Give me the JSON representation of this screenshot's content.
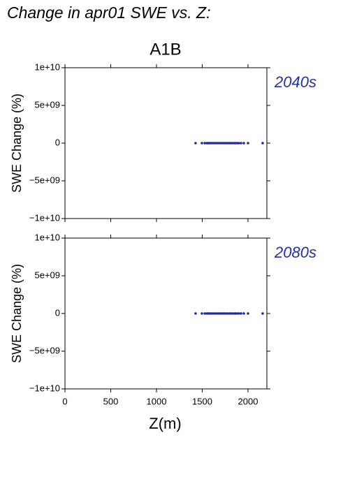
{
  "header": {
    "title": "Change in apr01 SWE vs. Z:",
    "subtitle": "A1B"
  },
  "chart_data": [
    {
      "type": "scatter",
      "label": "2040s",
      "ylabel": "SWE Change (%)",
      "color": "#1c2a9c",
      "label_color": "#2330a8",
      "xlim": [
        0,
        2206
      ],
      "xticks": [
        0,
        500,
        1000,
        1500,
        2000
      ],
      "ylim": [
        -10000000000,
        10000000000
      ],
      "yticks": [
        {
          "value": -10000000000,
          "label": "−1e+10"
        },
        {
          "value": -5000000000,
          "label": "−5e+09"
        },
        0,
        {
          "value": 5000000000,
          "label": "5e+09"
        },
        {
          "value": 10000000000,
          "label": "1e+10"
        }
      ],
      "x": [
        1427,
        1496,
        1527,
        1550,
        1565,
        1580,
        1600,
        1620,
        1640,
        1660,
        1680,
        1700,
        1720,
        1740,
        1760,
        1780,
        1800,
        1820,
        1840,
        1860,
        1880,
        1900,
        1924,
        1954,
        2000,
        2160
      ],
      "values": [
        0,
        0,
        0,
        0,
        0,
        0,
        0,
        0,
        0,
        0,
        0,
        0,
        0,
        0,
        0,
        0,
        0,
        0,
        0,
        0,
        0,
        0,
        0,
        0,
        0,
        0
      ]
    },
    {
      "type": "scatter",
      "label": "2080s",
      "ylabel": "SWE Change (%)",
      "xlabel": "Z(m)",
      "color": "#1c2a9c",
      "label_color": "#2330a8",
      "xlim": [
        0,
        2206
      ],
      "xticks": [
        0,
        500,
        1000,
        1500,
        2000
      ],
      "ylim": [
        -10000000000,
        10000000000
      ],
      "yticks": [
        {
          "value": -10000000000,
          "label": "−1e+10"
        },
        {
          "value": -5000000000,
          "label": "−5e+09"
        },
        0,
        {
          "value": 5000000000,
          "label": "5e+09"
        },
        {
          "value": 10000000000,
          "label": "1e+10"
        }
      ],
      "x": [
        1427,
        1496,
        1527,
        1550,
        1565,
        1580,
        1600,
        1620,
        1640,
        1660,
        1680,
        1700,
        1720,
        1740,
        1760,
        1780,
        1800,
        1820,
        1840,
        1860,
        1880,
        1900,
        1924,
        1954,
        2000,
        2160
      ],
      "values": [
        0,
        0,
        0,
        0,
        0,
        0,
        0,
        0,
        0,
        0,
        0,
        0,
        0,
        0,
        0,
        0,
        0,
        0,
        0,
        0,
        0,
        0,
        0,
        0,
        0,
        0
      ]
    }
  ]
}
